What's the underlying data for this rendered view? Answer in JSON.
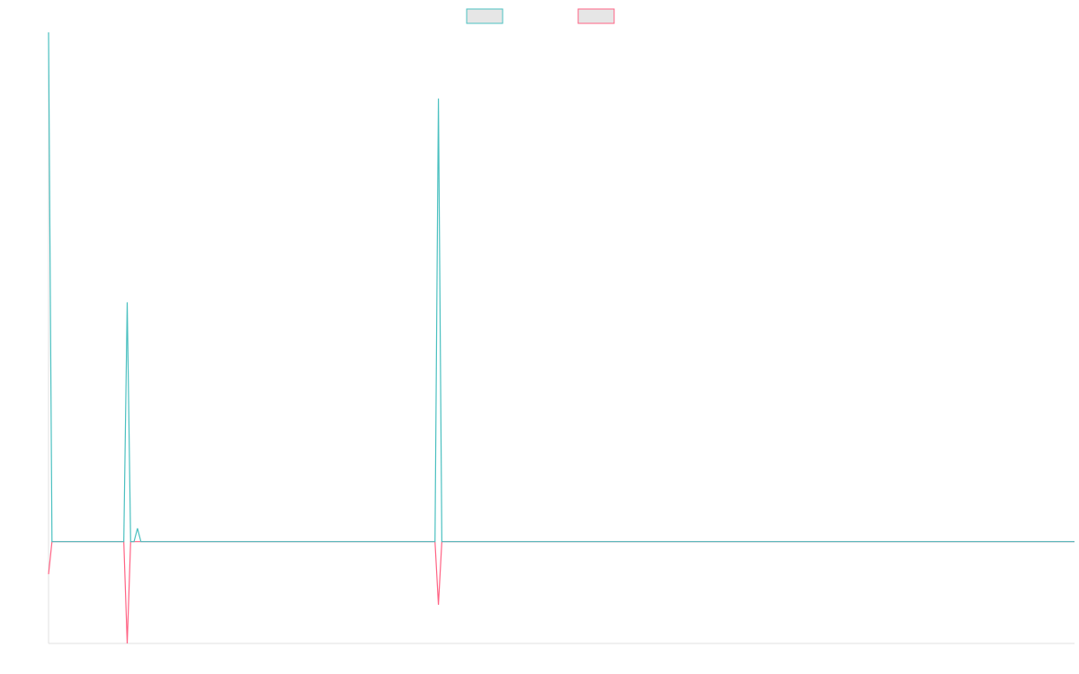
{
  "chart_data": {
    "type": "line",
    "x": [
      0,
      1,
      22,
      23,
      24,
      25,
      26,
      27,
      113,
      114,
      115,
      300
    ],
    "xlim": [
      0,
      300
    ],
    "ylim": [
      -20,
      100
    ],
    "legend": "top",
    "series": [
      {
        "color": "#ff6384",
        "values": [
          -6.4,
          0,
          0,
          -20,
          0,
          0,
          0,
          0,
          0,
          -12.4,
          0,
          0
        ]
      },
      {
        "color": "#4bc0c0",
        "values": [
          100,
          0,
          0,
          47,
          0,
          0,
          2.6,
          0,
          0,
          87,
          0,
          0
        ]
      }
    ]
  }
}
